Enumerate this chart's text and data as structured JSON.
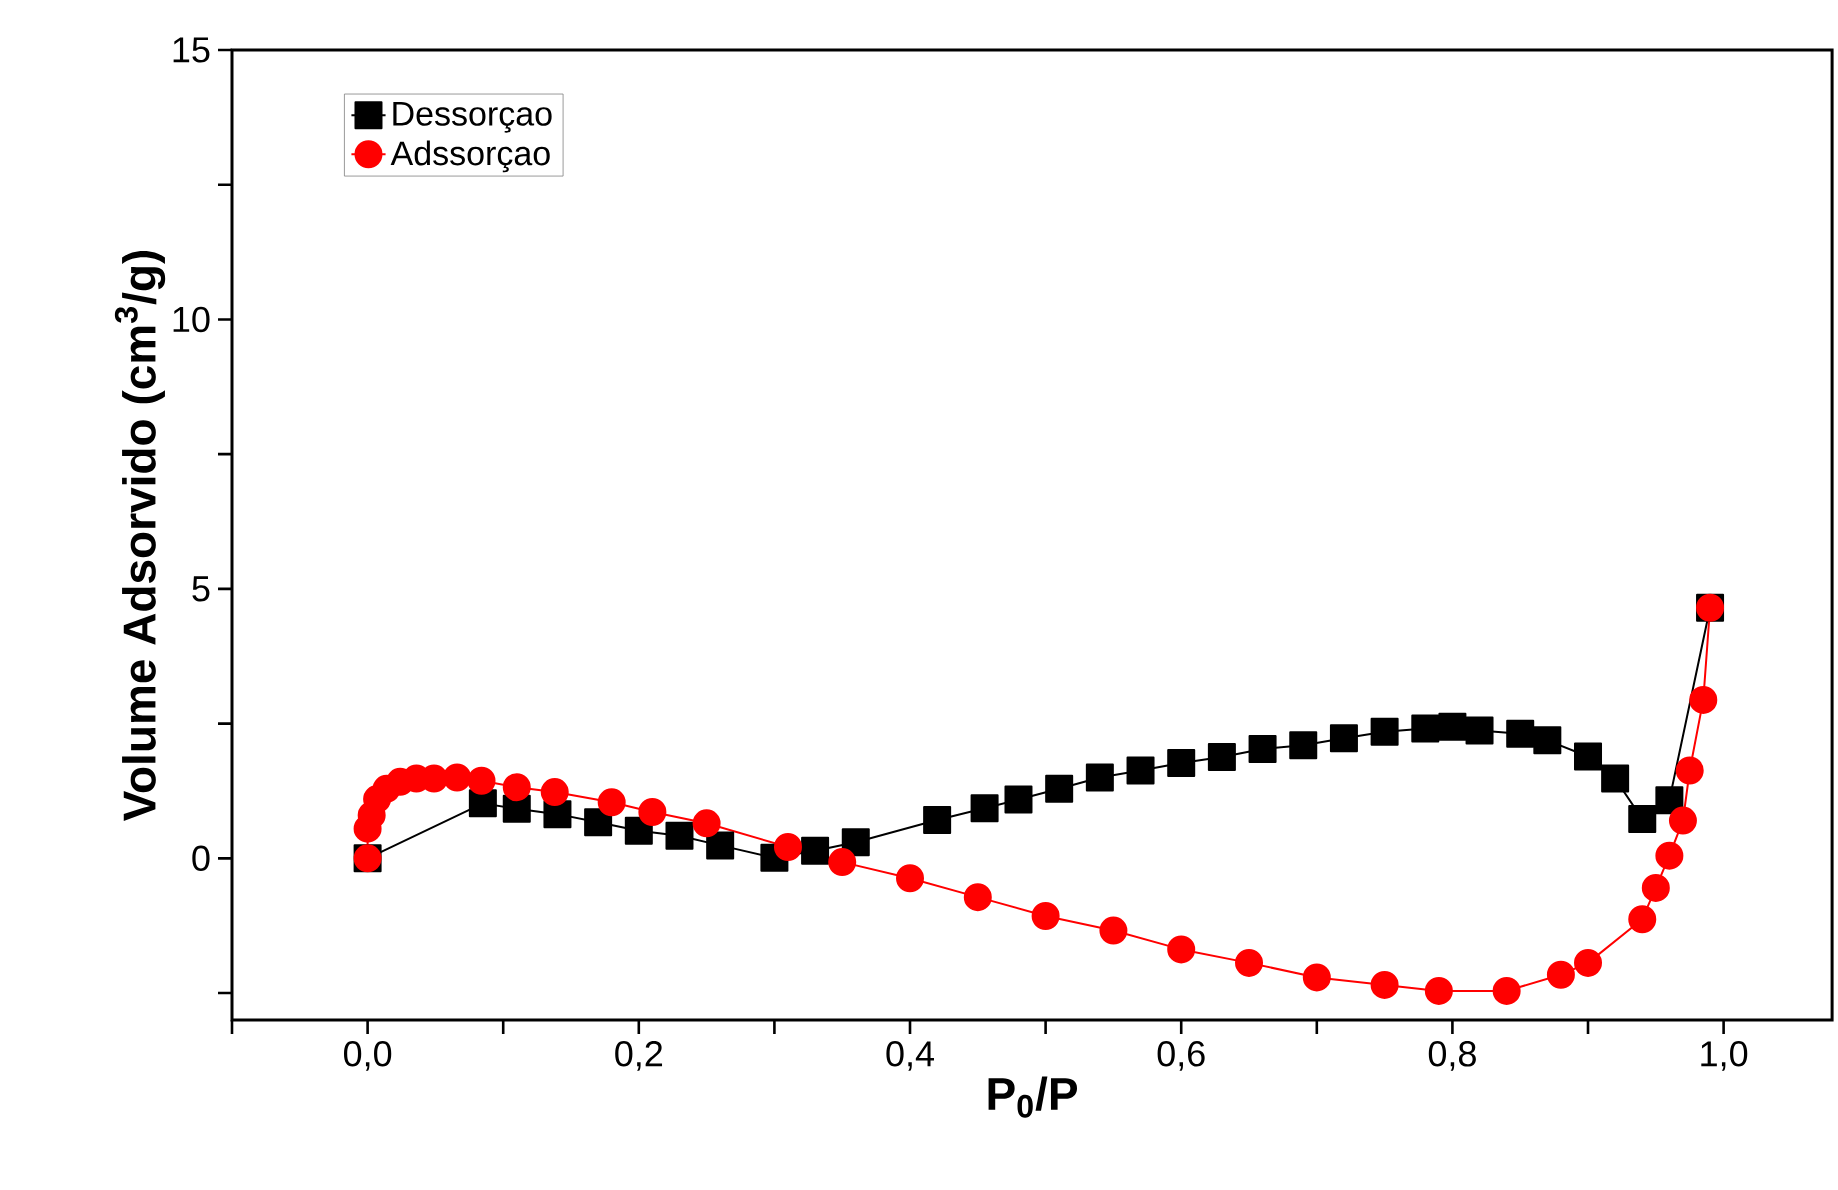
{
  "chart_data": {
    "type": "line",
    "xlabel": "P$_{0}$/P",
    "ylabel": "Volume Adsorvido (cm$^{3}$/g)",
    "xlim": [
      -0.1,
      1.08
    ],
    "ylim": [
      -3,
      15
    ],
    "xticks": [
      {
        "value": -0.1,
        "label": null
      },
      {
        "value": 0,
        "label": "0,0"
      },
      {
        "value": 0.1,
        "label": null
      },
      {
        "value": 0.2,
        "label": "0,2"
      },
      {
        "value": 0.3,
        "label": null
      },
      {
        "value": 0.4,
        "label": "0,4"
      },
      {
        "value": 0.5,
        "label": null
      },
      {
        "value": 0.6,
        "label": "0,6"
      },
      {
        "value": 0.7,
        "label": null
      },
      {
        "value": 0.8,
        "label": "0,8"
      },
      {
        "value": 0.9,
        "label": null
      },
      {
        "value": 1.0,
        "label": "1,0"
      }
    ],
    "yticks": [
      {
        "value": -2.5,
        "label": null
      },
      0,
      {
        "value": 2.5,
        "label": null
      },
      5,
      {
        "value": 7.5,
        "label": null
      },
      10,
      {
        "value": 12.5,
        "label": null
      },
      15
    ],
    "legend": "top left",
    "series": [
      {
        "name": "Dessorçao",
        "color": "#000000",
        "marker": "square",
        "x": [
          0,
          0.085,
          0.11,
          0.14,
          0.17,
          0.2,
          0.23,
          0.26,
          0.3,
          0.33,
          0.36,
          0.42,
          0.455,
          0.48,
          0.51,
          0.54,
          0.57,
          0.6,
          0.63,
          0.66,
          0.69,
          0.72,
          0.75,
          0.78,
          0.8,
          0.82,
          0.85,
          0.87,
          0.9,
          0.92,
          0.94,
          0.96,
          0.99
        ],
        "values": [
          0,
          1.02,
          0.92,
          0.82,
          0.67,
          0.51,
          0.42,
          0.24,
          0.01,
          0.14,
          0.3,
          0.71,
          0.93,
          1.09,
          1.29,
          1.5,
          1.63,
          1.77,
          1.88,
          2.03,
          2.1,
          2.23,
          2.35,
          2.41,
          2.44,
          2.37,
          2.31,
          2.19,
          1.89,
          1.48,
          0.73,
          1.08,
          4.65
        ]
      },
      {
        "name": "Adssorçao",
        "color": "#ff0000",
        "marker": "circle",
        "x": [
          0,
          0,
          0.003,
          0.007,
          0.014,
          0.024,
          0.036,
          0.049,
          0.066,
          0.084,
          0.11,
          0.138,
          0.18,
          0.21,
          0.25,
          0.31,
          0.35,
          0.4,
          0.45,
          0.5,
          0.55,
          0.6,
          0.65,
          0.7,
          0.75,
          0.79,
          0.84,
          0.88,
          0.9,
          0.94,
          0.95,
          0.96,
          0.97,
          0.975,
          0.985,
          0.99
        ],
        "values": [
          0,
          0.55,
          0.8,
          1.1,
          1.29,
          1.42,
          1.48,
          1.48,
          1.5,
          1.44,
          1.32,
          1.23,
          1.04,
          0.86,
          0.65,
          0.21,
          -0.07,
          -0.37,
          -0.72,
          -1.07,
          -1.34,
          -1.69,
          -1.94,
          -2.21,
          -2.35,
          -2.46,
          -2.46,
          -2.16,
          -1.94,
          -1.13,
          -0.55,
          0.05,
          0.7,
          1.63,
          2.94,
          4.65
        ]
      }
    ]
  }
}
